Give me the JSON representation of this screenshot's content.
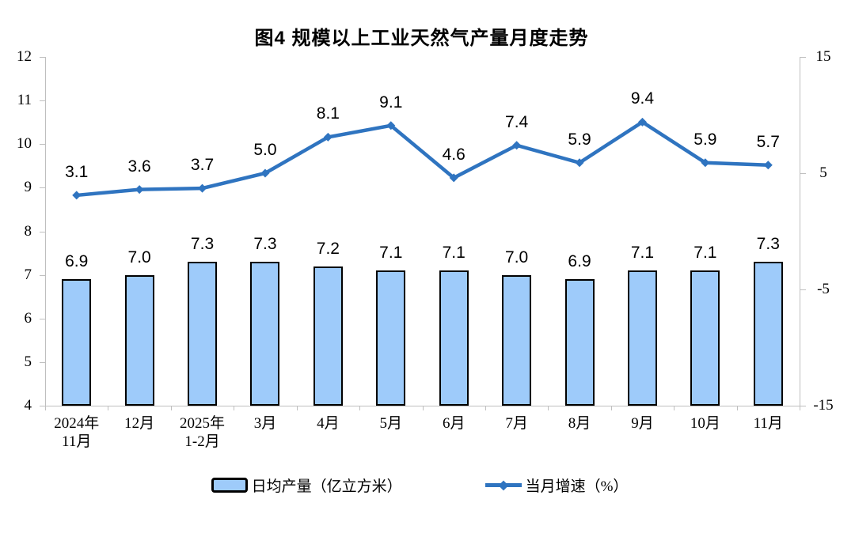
{
  "title": "图4  规模以上工业天然气产量月度走势",
  "chart_data": {
    "type": "bar",
    "subtype": "bar+line dual-axis",
    "title": "图4  规模以上工业天然气产量月度走势",
    "categories": [
      "2024年\n11月",
      "12月",
      "2025年\n1-2月",
      "3月",
      "4月",
      "5月",
      "6月",
      "7月",
      "8月",
      "9月",
      "10月",
      "11月"
    ],
    "series": [
      {
        "name": "日均产量（亿立方米）",
        "type": "bar",
        "axis": "left",
        "values": [
          6.9,
          7.0,
          7.3,
          7.3,
          7.2,
          7.1,
          7.1,
          7.0,
          6.9,
          7.1,
          7.1,
          7.3
        ]
      },
      {
        "name": "当月增速（%）",
        "type": "line",
        "axis": "right",
        "values": [
          3.1,
          3.6,
          3.7,
          5.0,
          8.1,
          9.1,
          4.6,
          7.4,
          5.9,
          9.4,
          5.9,
          5.7
        ]
      }
    ],
    "left_axis": {
      "min": 4,
      "max": 12,
      "ticks": [
        4,
        5,
        6,
        7,
        8,
        9,
        10,
        11,
        12
      ]
    },
    "right_axis": {
      "min": -15,
      "max": 15,
      "ticks": [
        -15,
        -5,
        5,
        15
      ]
    },
    "legend": [
      {
        "label": "日均产量（亿立方米）",
        "marker": "bar-swatch"
      },
      {
        "label": "当月增速（%）",
        "marker": "line-with-diamond"
      }
    ],
    "grid": false,
    "legend_position": "bottom",
    "colors": {
      "bar_fill": "#9ECBFA",
      "bar_border": "#000000",
      "line": "#2F74C0",
      "axis": "#BFBFBF",
      "text": "#000000",
      "background": "#FFFFFF"
    }
  }
}
